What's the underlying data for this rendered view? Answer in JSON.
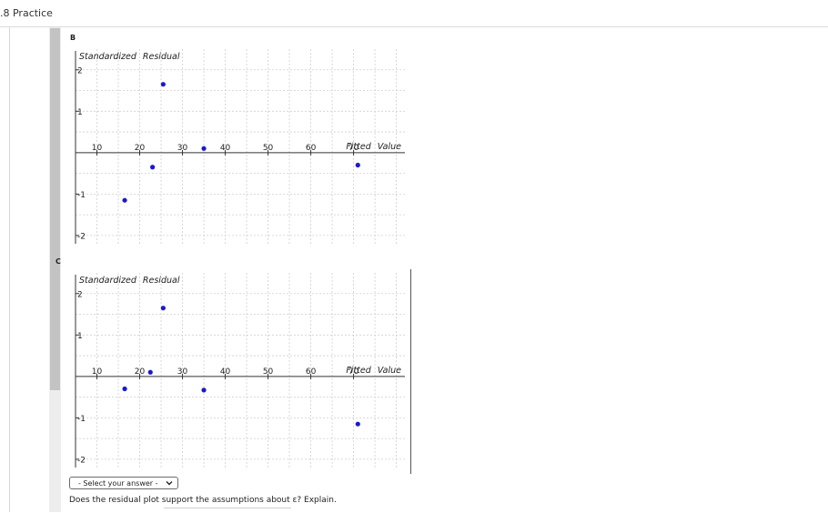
{
  "header": {
    "title": ".8 Practice"
  },
  "question": {
    "select_placeholder": "- Select your answer -",
    "prompt": "Does the residual plot support the assumptions about ε? Explain."
  },
  "chart_data": [
    {
      "option_label": "B",
      "type": "scatter",
      "ylabel": "Standardized Residual",
      "xlabel": "Fitted Value",
      "x_ticks": [
        "10",
        "20",
        "30",
        "40",
        "50",
        "60",
        "70"
      ],
      "y_ticks_pos": [
        "2",
        "1"
      ],
      "y_ticks_neg": [
        "-1",
        "-2"
      ],
      "xlim": [
        5,
        82
      ],
      "ylim": [
        -2.2,
        2.5
      ],
      "grid": true,
      "point_color": "#1a1acc",
      "points": [
        {
          "x": 16.5,
          "y": -1.15
        },
        {
          "x": 23,
          "y": -0.35
        },
        {
          "x": 25.5,
          "y": 1.65
        },
        {
          "x": 35,
          "y": 0.1
        },
        {
          "x": 71,
          "y": -0.3
        }
      ]
    },
    {
      "option_label": "C",
      "type": "scatter",
      "ylabel": "Standardized Residual",
      "xlabel": "Fitted Value",
      "x_ticks": [
        "10",
        "20",
        "30",
        "40",
        "50",
        "60",
        "70"
      ],
      "y_ticks_pos": [
        "2",
        "1"
      ],
      "y_ticks_neg": [
        "-1",
        "-2"
      ],
      "xlim": [
        5,
        82
      ],
      "ylim": [
        -2.2,
        2.5
      ],
      "grid": true,
      "point_color": "#1a1acc",
      "points": [
        {
          "x": 16.5,
          "y": -0.3
        },
        {
          "x": 22.5,
          "y": 0.1
        },
        {
          "x": 25.5,
          "y": 1.65
        },
        {
          "x": 35,
          "y": -0.33
        },
        {
          "x": 71,
          "y": -1.15
        }
      ]
    }
  ]
}
